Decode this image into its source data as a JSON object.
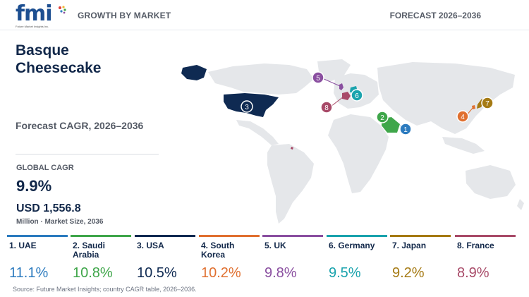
{
  "header": {
    "logo_text": "fmi",
    "logo_tagline": "Future Market Insights Inc.",
    "left_label": "GROWTH BY MARKET",
    "right_label": "FORECAST 2026–2036"
  },
  "panel": {
    "title_line1": "Basque",
    "title_line2": "Cheesecake",
    "subtitle": "Forecast CAGR, 2026–2036",
    "global_cagr_label": "GLOBAL CAGR",
    "global_cagr_value": "9.9%",
    "market_size_value": "USD 1,556.8",
    "market_size_caption": "Million · Market Size, 2036"
  },
  "colors": {
    "navy": "#12284a",
    "land": "#e5e7ea",
    "uae": "#2c7bbf",
    "saudi": "#3fa64a",
    "usa": "#0f2a52",
    "south_korea": "#e07030",
    "uk": "#8a4fa0",
    "germany": "#1aa3ad",
    "japan": "#a57a13",
    "france": "#a84a68"
  },
  "map": {
    "markers": [
      {
        "num": "1",
        "country": "UAE"
      },
      {
        "num": "2",
        "country": "Saudi Arabia"
      },
      {
        "num": "3",
        "country": "USA"
      },
      {
        "num": "4",
        "country": "South Korea"
      },
      {
        "num": "5",
        "country": "UK"
      },
      {
        "num": "6",
        "country": "Germany"
      },
      {
        "num": "7",
        "country": "Japan"
      },
      {
        "num": "8",
        "country": "France"
      }
    ]
  },
  "cards": [
    {
      "name": "1. UAE",
      "value": "11.1%",
      "color": "#2c7bbf"
    },
    {
      "name": "2. Saudi Arabia",
      "value": "10.8%",
      "color": "#3fa64a"
    },
    {
      "name": "3. USA",
      "value": "10.5%",
      "color": "#0f2a52"
    },
    {
      "name": "4. South Korea",
      "value": "10.2%",
      "color": "#e07030"
    },
    {
      "name": "5. UK",
      "value": "9.8%",
      "color": "#8a4fa0"
    },
    {
      "name": "6. Germany",
      "value": "9.5%",
      "color": "#1aa3ad"
    },
    {
      "name": "7. Japan",
      "value": "9.2%",
      "color": "#a57a13"
    },
    {
      "name": "8. France",
      "value": "8.9%",
      "color": "#a84a68"
    }
  ],
  "source": "Source: Future Market Insights; country CAGR table, 2026–2036."
}
